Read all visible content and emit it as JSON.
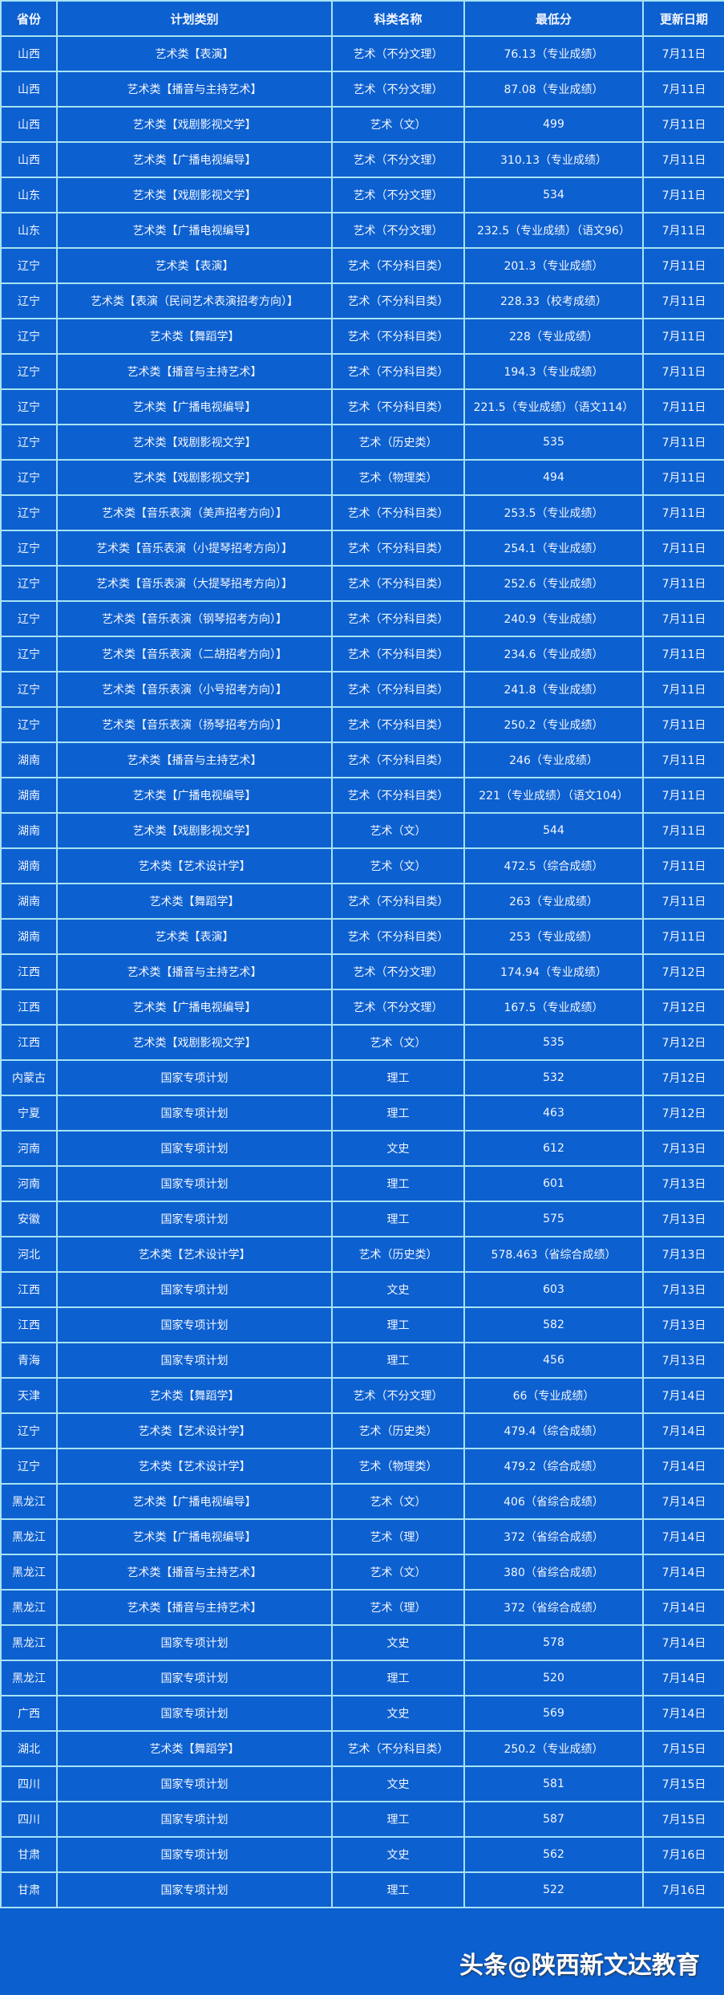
{
  "colors": {
    "background": "#0d60cf",
    "grid": "#a6e3f3",
    "text": "#f2f6ff"
  },
  "table": {
    "headers": [
      "省份",
      "计划类别",
      "科类名称",
      "最低分",
      "更新日期"
    ],
    "rows": [
      [
        "山西",
        "艺术类【表演】",
        "艺术（不分文理）",
        "76.13（专业成绩）",
        "7月11日"
      ],
      [
        "山西",
        "艺术类【播音与主持艺术】",
        "艺术（不分文理）",
        "87.08（专业成绩）",
        "7月11日"
      ],
      [
        "山西",
        "艺术类【戏剧影视文学】",
        "艺术（文）",
        "499",
        "7月11日"
      ],
      [
        "山西",
        "艺术类【广播电视编导】",
        "艺术（不分文理）",
        "310.13（专业成绩）",
        "7月11日"
      ],
      [
        "山东",
        "艺术类【戏剧影视文学】",
        "艺术（不分文理）",
        "534",
        "7月11日"
      ],
      [
        "山东",
        "艺术类【广播电视编导】",
        "艺术（不分文理）",
        "232.5（专业成绩）（语文96）",
        "7月11日"
      ],
      [
        "辽宁",
        "艺术类【表演】",
        "艺术（不分科目类）",
        "201.3（专业成绩）",
        "7月11日"
      ],
      [
        "辽宁",
        "艺术类【表演（民间艺术表演招考方向）】",
        "艺术（不分科目类）",
        "228.33（校考成绩）",
        "7月11日"
      ],
      [
        "辽宁",
        "艺术类【舞蹈学】",
        "艺术（不分科目类）",
        "228（专业成绩）",
        "7月11日"
      ],
      [
        "辽宁",
        "艺术类【播音与主持艺术】",
        "艺术（不分科目类）",
        "194.3（专业成绩）",
        "7月11日"
      ],
      [
        "辽宁",
        "艺术类【广播电视编导】",
        "艺术（不分科目类）",
        "221.5（专业成绩）（语文114）",
        "7月11日"
      ],
      [
        "辽宁",
        "艺术类【戏剧影视文学】",
        "艺术（历史类）",
        "535",
        "7月11日"
      ],
      [
        "辽宁",
        "艺术类【戏剧影视文学】",
        "艺术（物理类）",
        "494",
        "7月11日"
      ],
      [
        "辽宁",
        "艺术类【音乐表演（美声招考方向）】",
        "艺术（不分科目类）",
        "253.5（专业成绩）",
        "7月11日"
      ],
      [
        "辽宁",
        "艺术类【音乐表演（小提琴招考方向）】",
        "艺术（不分科目类）",
        "254.1（专业成绩）",
        "7月11日"
      ],
      [
        "辽宁",
        "艺术类【音乐表演（大提琴招考方向）】",
        "艺术（不分科目类）",
        "252.6（专业成绩）",
        "7月11日"
      ],
      [
        "辽宁",
        "艺术类【音乐表演（钢琴招考方向）】",
        "艺术（不分科目类）",
        "240.9（专业成绩）",
        "7月11日"
      ],
      [
        "辽宁",
        "艺术类【音乐表演（二胡招考方向）】",
        "艺术（不分科目类）",
        "234.6（专业成绩）",
        "7月11日"
      ],
      [
        "辽宁",
        "艺术类【音乐表演（小号招考方向）】",
        "艺术（不分科目类）",
        "241.8（专业成绩）",
        "7月11日"
      ],
      [
        "辽宁",
        "艺术类【音乐表演（扬琴招考方向）】",
        "艺术（不分科目类）",
        "250.2（专业成绩）",
        "7月11日"
      ],
      [
        "湖南",
        "艺术类【播音与主持艺术】",
        "艺术（不分科目类）",
        "246（专业成绩）",
        "7月11日"
      ],
      [
        "湖南",
        "艺术类【广播电视编导】",
        "艺术（不分科目类）",
        "221（专业成绩）（语文104）",
        "7月11日"
      ],
      [
        "湖南",
        "艺术类【戏剧影视文学】",
        "艺术（文）",
        "544",
        "7月11日"
      ],
      [
        "湖南",
        "艺术类【艺术设计学】",
        "艺术（文）",
        "472.5（综合成绩）",
        "7月11日"
      ],
      [
        "湖南",
        "艺术类【舞蹈学】",
        "艺术（不分科目类）",
        "263（专业成绩）",
        "7月11日"
      ],
      [
        "湖南",
        "艺术类【表演】",
        "艺术（不分科目类）",
        "253（专业成绩）",
        "7月11日"
      ],
      [
        "江西",
        "艺术类【播音与主持艺术】",
        "艺术（不分文理）",
        "174.94（专业成绩）",
        "7月12日"
      ],
      [
        "江西",
        "艺术类【广播电视编导】",
        "艺术（不分文理）",
        "167.5（专业成绩）",
        "7月12日"
      ],
      [
        "江西",
        "艺术类【戏剧影视文学】",
        "艺术（文）",
        "535",
        "7月12日"
      ],
      [
        "内蒙古",
        "国家专项计划",
        "理工",
        "532",
        "7月12日"
      ],
      [
        "宁夏",
        "国家专项计划",
        "理工",
        "463",
        "7月12日"
      ],
      [
        "河南",
        "国家专项计划",
        "文史",
        "612",
        "7月13日"
      ],
      [
        "河南",
        "国家专项计划",
        "理工",
        "601",
        "7月13日"
      ],
      [
        "安徽",
        "国家专项计划",
        "理工",
        "575",
        "7月13日"
      ],
      [
        "河北",
        "艺术类【艺术设计学】",
        "艺术（历史类）",
        "578.463（省综合成绩）",
        "7月13日"
      ],
      [
        "江西",
        "国家专项计划",
        "文史",
        "603",
        "7月13日"
      ],
      [
        "江西",
        "国家专项计划",
        "理工",
        "582",
        "7月13日"
      ],
      [
        "青海",
        "国家专项计划",
        "理工",
        "456",
        "7月13日"
      ],
      [
        "天津",
        "艺术类【舞蹈学】",
        "艺术（不分文理）",
        "66（专业成绩）",
        "7月14日"
      ],
      [
        "辽宁",
        "艺术类【艺术设计学】",
        "艺术（历史类）",
        "479.4（综合成绩）",
        "7月14日"
      ],
      [
        "辽宁",
        "艺术类【艺术设计学】",
        "艺术（物理类）",
        "479.2（综合成绩）",
        "7月14日"
      ],
      [
        "黑龙江",
        "艺术类【广播电视编导】",
        "艺术（文）",
        "406（省综合成绩）",
        "7月14日"
      ],
      [
        "黑龙江",
        "艺术类【广播电视编导】",
        "艺术（理）",
        "372（省综合成绩）",
        "7月14日"
      ],
      [
        "黑龙江",
        "艺术类【播音与主持艺术】",
        "艺术（文）",
        "380（省综合成绩）",
        "7月14日"
      ],
      [
        "黑龙江",
        "艺术类【播音与主持艺术】",
        "艺术（理）",
        "372（省综合成绩）",
        "7月14日"
      ],
      [
        "黑龙江",
        "国家专项计划",
        "文史",
        "578",
        "7月14日"
      ],
      [
        "黑龙江",
        "国家专项计划",
        "理工",
        "520",
        "7月14日"
      ],
      [
        "广西",
        "国家专项计划",
        "文史",
        "569",
        "7月14日"
      ],
      [
        "湖北",
        "艺术类【舞蹈学】",
        "艺术（不分科目类）",
        "250.2（专业成绩）",
        "7月15日"
      ],
      [
        "四川",
        "国家专项计划",
        "文史",
        "581",
        "7月15日"
      ],
      [
        "四川",
        "国家专项计划",
        "理工",
        "587",
        "7月15日"
      ],
      [
        "甘肃",
        "国家专项计划",
        "文史",
        "562",
        "7月16日"
      ],
      [
        "甘肃",
        "国家专项计划",
        "理工",
        "522",
        "7月16日"
      ]
    ]
  },
  "watermark": "头条@陕西新文达教育"
}
